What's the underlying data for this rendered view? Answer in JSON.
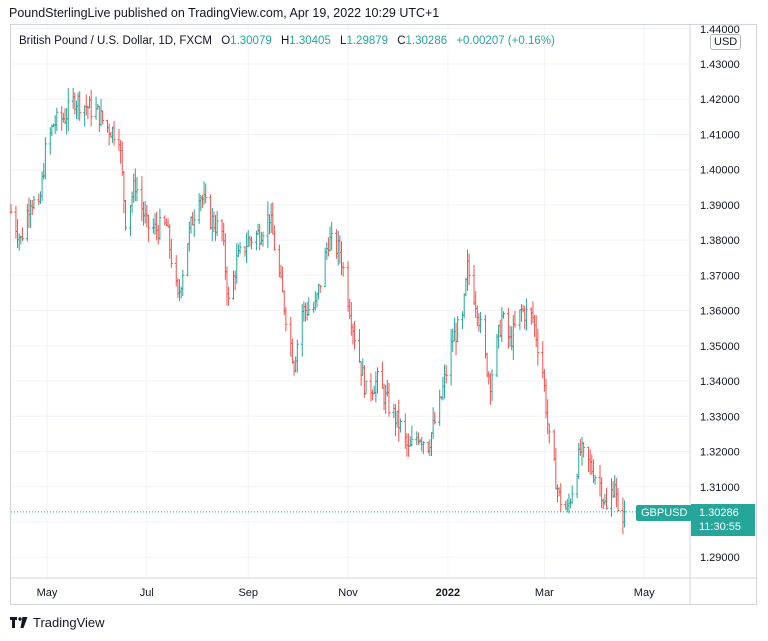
{
  "header": {
    "publisher": "PoundSterlingLive published on TradingView.com, Apr 19, 2022 10:29 UTC+1"
  },
  "legend": {
    "title": "British Pound / U.S. Dollar, 1D, FXCM",
    "o_label": "O",
    "o_value": "1.30079",
    "h_label": "H",
    "h_value": "1.30405",
    "l_label": "L",
    "l_value": "1.29879",
    "c_label": "C",
    "c_value": "1.30286",
    "change": "+0.00207 (+0.16%)"
  },
  "currency": "USD",
  "symbol_label": "GBPUSD",
  "last_price": "1.30286",
  "countdown": "11:30:55",
  "footer": {
    "brand": "TradingView"
  },
  "colors": {
    "up": "#26a69a",
    "down": "#ef5350",
    "grid": "#f0f3fa",
    "border": "#d1d4dc"
  },
  "chart_data": {
    "type": "ohlc",
    "title": "British Pound / U.S. Dollar, 1D, FXCM",
    "y_ticks": [
      1.29,
      1.3,
      1.31,
      1.32,
      1.33,
      1.34,
      1.35,
      1.36,
      1.37,
      1.38,
      1.39,
      1.4,
      1.41,
      1.42,
      1.43,
      1.44
    ],
    "y_tick_labels": [
      "1.29000",
      "1.30000",
      "1.31000",
      "1.32000",
      "1.33000",
      "1.34000",
      "1.35000",
      "1.36000",
      "1.37000",
      "1.38000",
      "1.39000",
      "1.40000",
      "1.41000",
      "1.42000",
      "1.43000",
      "1.44000"
    ],
    "x_labels": [
      {
        "label": "May",
        "date": "2021-05-01"
      },
      {
        "label": "Jul",
        "date": "2021-07-01"
      },
      {
        "label": "Sep",
        "date": "2021-09-01"
      },
      {
        "label": "Nov",
        "date": "2021-11-01"
      },
      {
        "label": "2022",
        "date": "2022-01-01"
      },
      {
        "label": "Mar",
        "date": "2022-03-01"
      },
      {
        "label": "May",
        "date": "2022-05-01"
      }
    ],
    "x_range": [
      "2021-04-09",
      "2022-05-29"
    ],
    "ylim": [
      1.285,
      1.44
    ],
    "grid": true,
    "last_close": 1.30286,
    "anchors": [
      {
        "date": "2021-04-09",
        "close": 1.388
      },
      {
        "date": "2021-04-15",
        "close": 1.38
      },
      {
        "date": "2021-04-21",
        "close": 1.392
      },
      {
        "date": "2021-04-26",
        "close": 1.388
      },
      {
        "date": "2021-04-30",
        "close": 1.405
      },
      {
        "date": "2021-05-05",
        "close": 1.413
      },
      {
        "date": "2021-05-12",
        "close": 1.415
      },
      {
        "date": "2021-05-18",
        "close": 1.42
      },
      {
        "date": "2021-05-25",
        "close": 1.418
      },
      {
        "date": "2021-06-01",
        "close": 1.416
      },
      {
        "date": "2021-06-07",
        "close": 1.412
      },
      {
        "date": "2021-06-14",
        "close": 1.41
      },
      {
        "date": "2021-06-18",
        "close": 1.386
      },
      {
        "date": "2021-06-24",
        "close": 1.396
      },
      {
        "date": "2021-07-01",
        "close": 1.384
      },
      {
        "date": "2021-07-06",
        "close": 1.383
      },
      {
        "date": "2021-07-13",
        "close": 1.384
      },
      {
        "date": "2021-07-20",
        "close": 1.363
      },
      {
        "date": "2021-07-26",
        "close": 1.38
      },
      {
        "date": "2021-08-02",
        "close": 1.394
      },
      {
        "date": "2021-08-09",
        "close": 1.386
      },
      {
        "date": "2021-08-16",
        "close": 1.382
      },
      {
        "date": "2021-08-20",
        "close": 1.362
      },
      {
        "date": "2021-08-25",
        "close": 1.374
      },
      {
        "date": "2021-09-01",
        "close": 1.38
      },
      {
        "date": "2021-09-08",
        "close": 1.382
      },
      {
        "date": "2021-09-14",
        "close": 1.387
      },
      {
        "date": "2021-09-21",
        "close": 1.367
      },
      {
        "date": "2021-09-29",
        "close": 1.345
      },
      {
        "date": "2021-10-04",
        "close": 1.36
      },
      {
        "date": "2021-10-12",
        "close": 1.361
      },
      {
        "date": "2021-10-20",
        "close": 1.38
      },
      {
        "date": "2021-10-27",
        "close": 1.377
      },
      {
        "date": "2021-11-05",
        "close": 1.353
      },
      {
        "date": "2021-11-12",
        "close": 1.337
      },
      {
        "date": "2021-11-19",
        "close": 1.34
      },
      {
        "date": "2021-11-26",
        "close": 1.333
      },
      {
        "date": "2021-12-03",
        "close": 1.327
      },
      {
        "date": "2021-12-08",
        "close": 1.32
      },
      {
        "date": "2021-12-14",
        "close": 1.325
      },
      {
        "date": "2021-12-20",
        "close": 1.322
      },
      {
        "date": "2021-12-27",
        "close": 1.333
      },
      {
        "date": "2022-01-04",
        "close": 1.352
      },
      {
        "date": "2022-01-10",
        "close": 1.357
      },
      {
        "date": "2022-01-13",
        "close": 1.372
      },
      {
        "date": "2022-01-19",
        "close": 1.361
      },
      {
        "date": "2022-01-24",
        "close": 1.346
      },
      {
        "date": "2022-01-27",
        "close": 1.34
      },
      {
        "date": "2022-02-03",
        "close": 1.358
      },
      {
        "date": "2022-02-08",
        "close": 1.351
      },
      {
        "date": "2022-02-15",
        "close": 1.36
      },
      {
        "date": "2022-02-22",
        "close": 1.358
      },
      {
        "date": "2022-02-28",
        "close": 1.343
      },
      {
        "date": "2022-03-04",
        "close": 1.323
      },
      {
        "date": "2022-03-10",
        "close": 1.307
      },
      {
        "date": "2022-03-15",
        "close": 1.303
      },
      {
        "date": "2022-03-23",
        "close": 1.32
      },
      {
        "date": "2022-03-29",
        "close": 1.316
      },
      {
        "date": "2022-04-04",
        "close": 1.311
      },
      {
        "date": "2022-04-08",
        "close": 1.303
      },
      {
        "date": "2022-04-13",
        "close": 1.312
      },
      {
        "date": "2022-04-15",
        "close": 1.301
      },
      {
        "date": "2022-04-19",
        "close": 1.30286
      }
    ]
  }
}
